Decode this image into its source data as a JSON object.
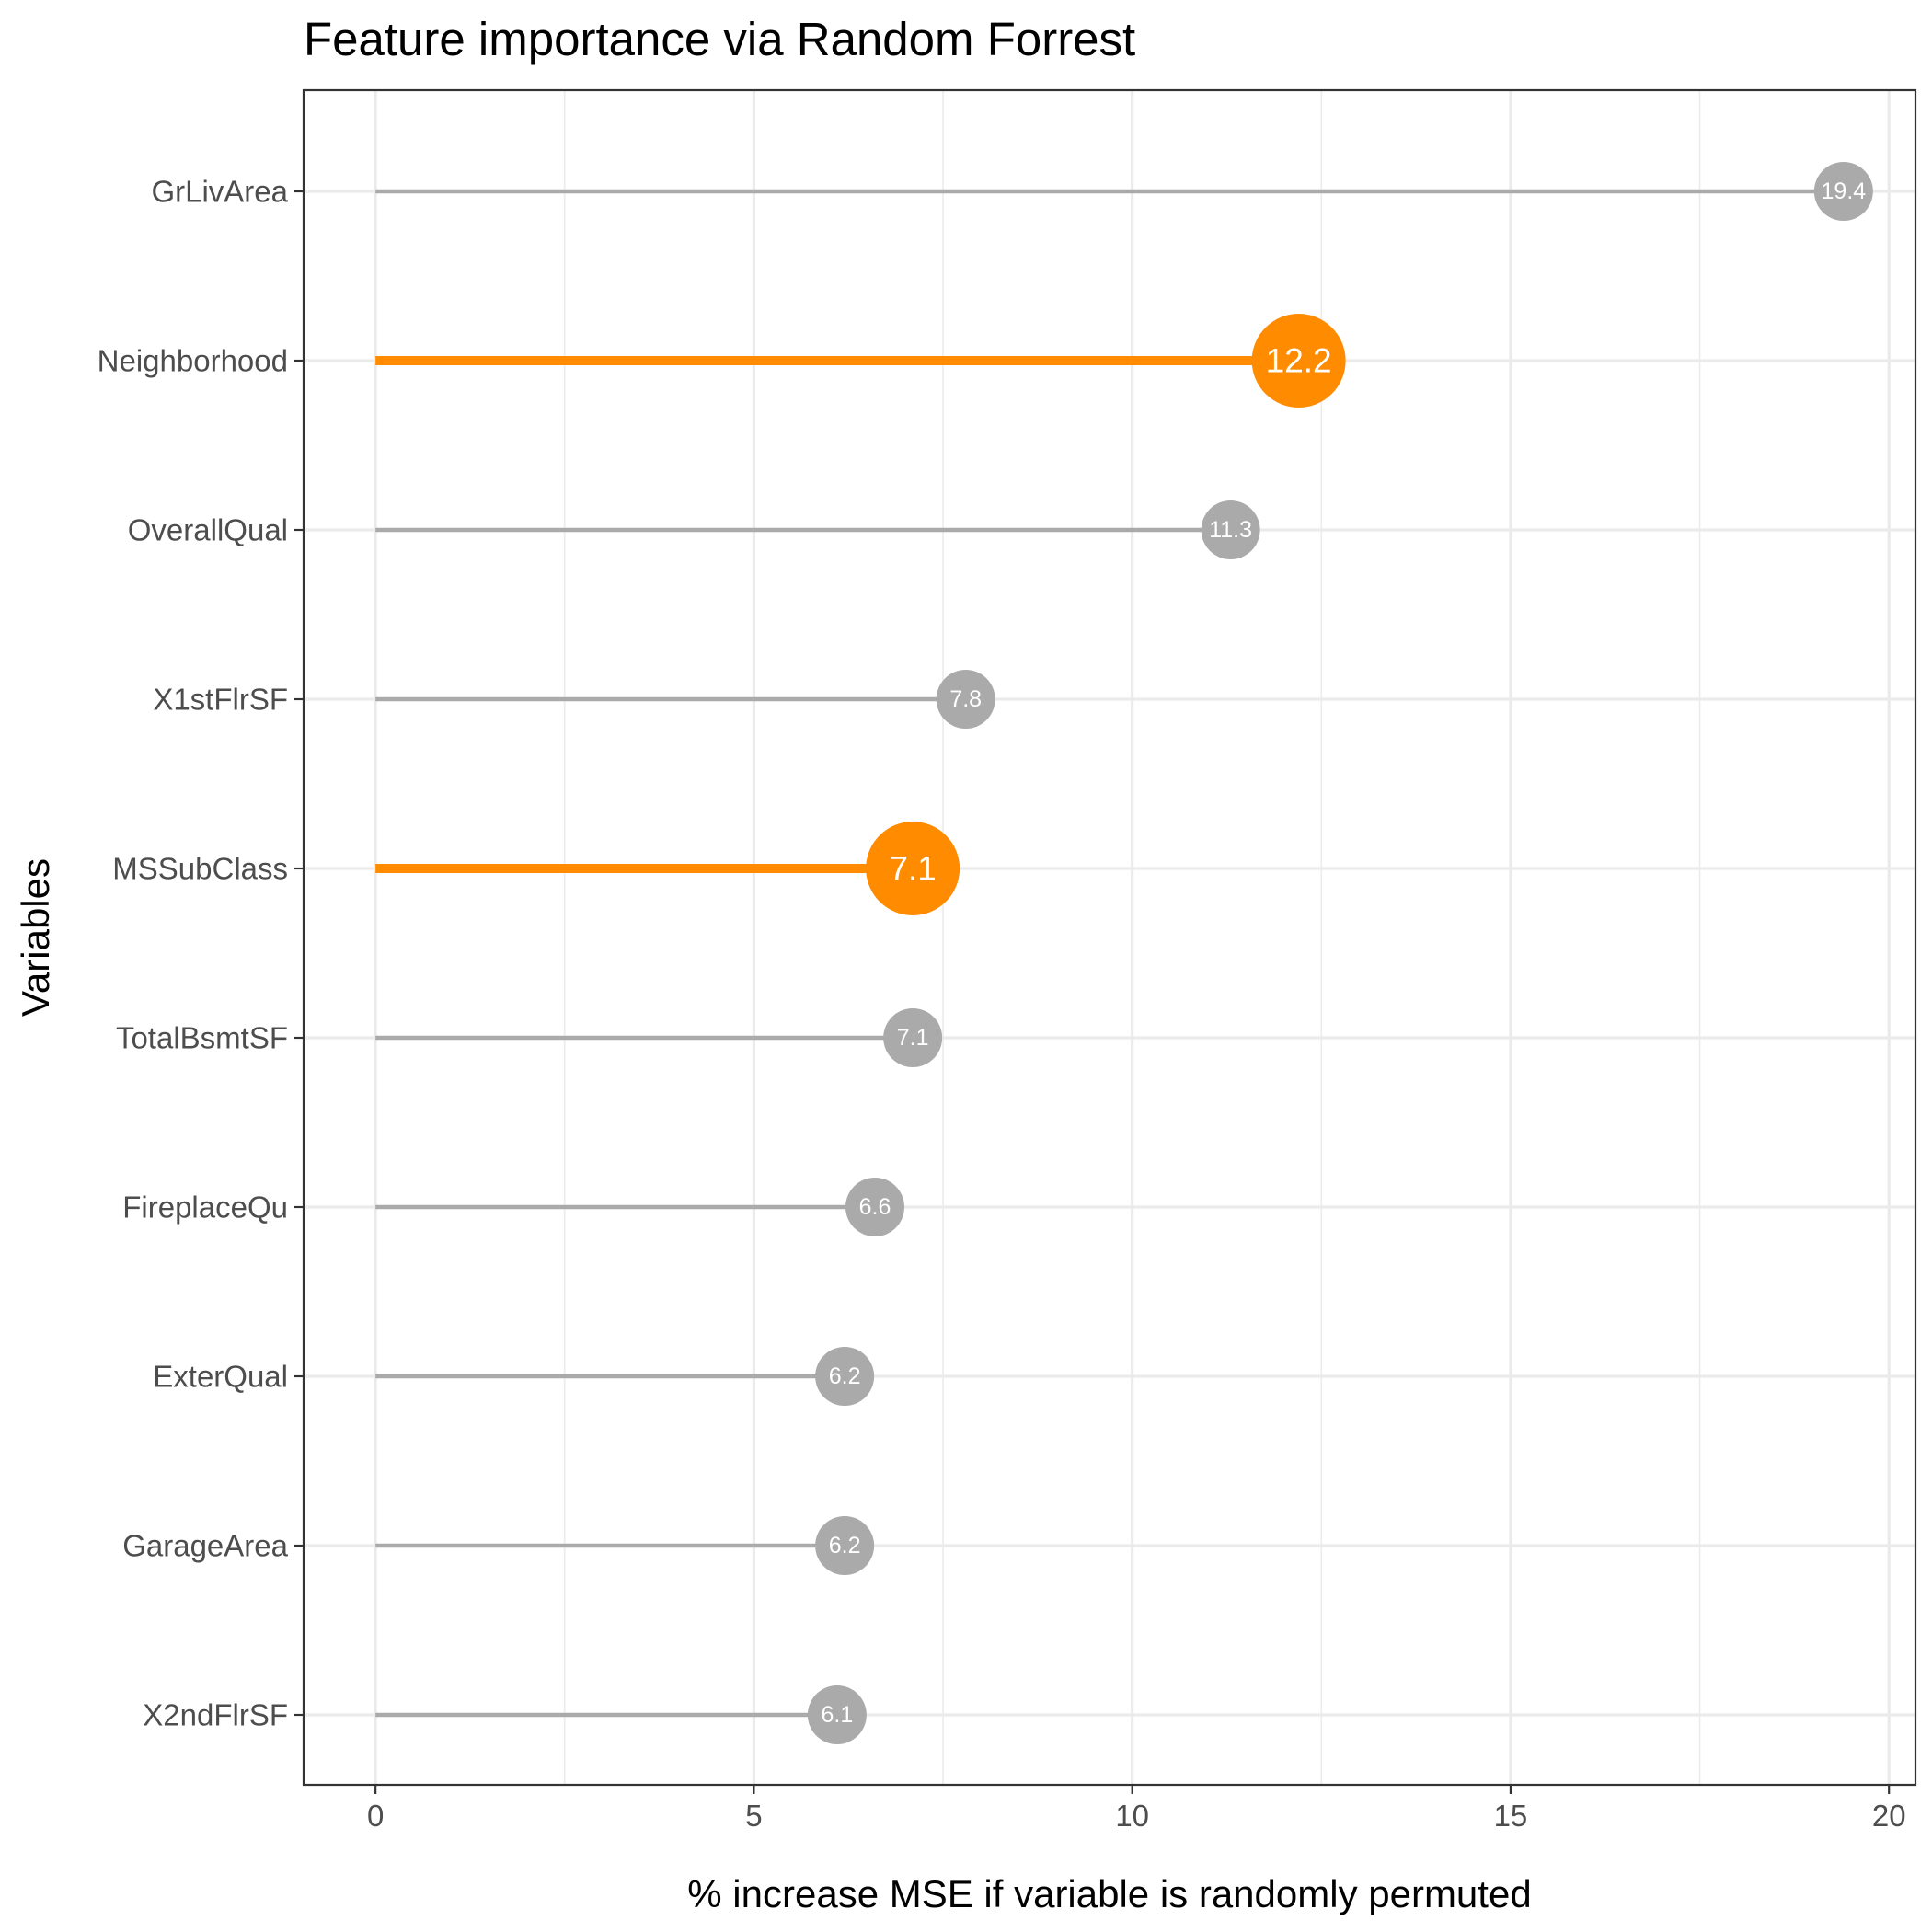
{
  "chart_data": {
    "type": "lollipop",
    "orientation": "horizontal",
    "title": "Feature importance via Random Forrest",
    "xlabel": "% increase MSE if variable is randomly permuted",
    "ylabel": "Variables",
    "xlim": [
      -0.95,
      20.35
    ],
    "x_ticks": [
      0,
      5,
      10,
      15,
      20
    ],
    "x_tick_labels": [
      "0",
      "5",
      "10",
      "15",
      "20"
    ],
    "grid": true,
    "highlight_color": "#ff8c00",
    "default_color": "#aaaaaa",
    "categories": [
      "GrLivArea",
      "Neighborhood",
      "OverallQual",
      "X1stFlrSF",
      "MSSubClass",
      "TotalBsmtSF",
      "FireplaceQu",
      "ExterQual",
      "GarageArea",
      "X2ndFlrSF"
    ],
    "values": [
      19.4,
      12.2,
      11.3,
      7.8,
      7.1,
      7.1,
      6.6,
      6.2,
      6.2,
      6.1
    ],
    "labels": [
      "19.4",
      "12.2",
      "11.3",
      "7.8",
      "7.1",
      "7.1",
      "6.6",
      "6.2",
      "6.2",
      "6.1"
    ],
    "highlighted": [
      false,
      true,
      false,
      false,
      true,
      false,
      false,
      false,
      false,
      false
    ]
  }
}
